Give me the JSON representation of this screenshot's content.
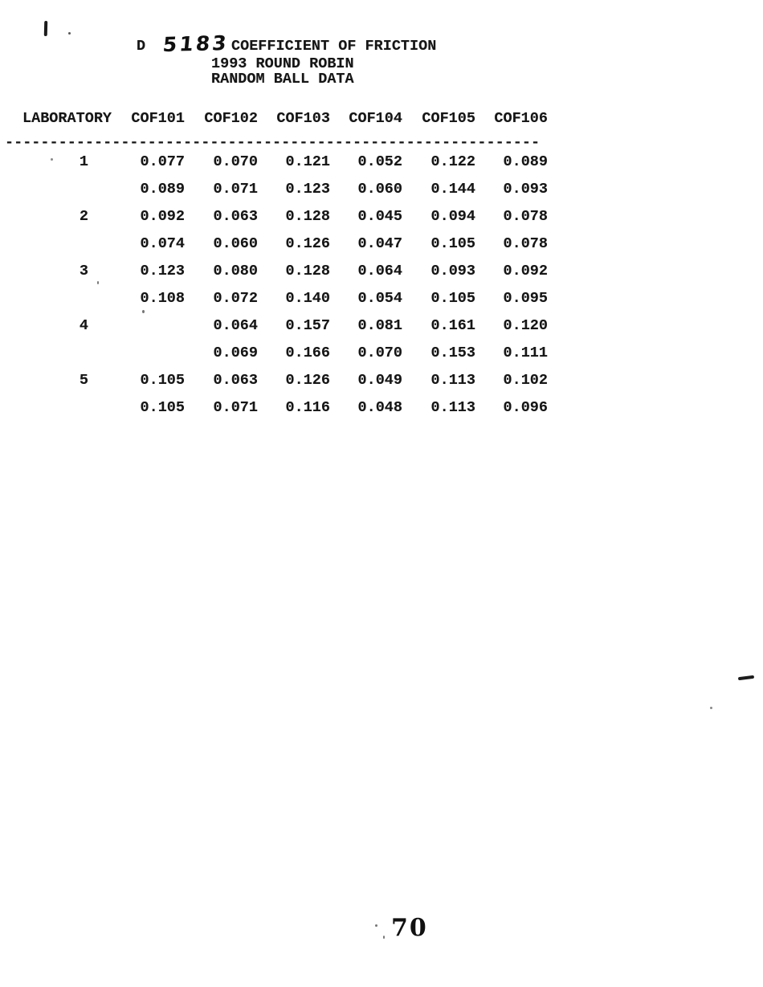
{
  "document": {
    "standard_prefix": "D",
    "standard_number_handwritten": "5183",
    "stray_mark": ".",
    "title_line1": "COEFFICIENT OF FRICTION",
    "title_line2": "1993 ROUND ROBIN",
    "title_line3": "RANDOM BALL DATA",
    "page_number": "70"
  },
  "table": {
    "columns": [
      "LABORATORY",
      "COF101",
      "COF102",
      "COF103",
      "COF104",
      "COF105",
      "COF106"
    ],
    "separator": "------------------------------------------------------------",
    "rows": [
      {
        "lab": "1",
        "values": [
          "0.077",
          "0.070",
          "0.121",
          "0.052",
          "0.122",
          "0.089"
        ]
      },
      {
        "lab": "",
        "values": [
          "0.089",
          "0.071",
          "0.123",
          "0.060",
          "0.144",
          "0.093"
        ]
      },
      {
        "lab": "2",
        "values": [
          "0.092",
          "0.063",
          "0.128",
          "0.045",
          "0.094",
          "0.078"
        ]
      },
      {
        "lab": "",
        "values": [
          "0.074",
          "0.060",
          "0.126",
          "0.047",
          "0.105",
          "0.078"
        ]
      },
      {
        "lab": "3",
        "values": [
          "0.123",
          "0.080",
          "0.128",
          "0.064",
          "0.093",
          "0.092"
        ]
      },
      {
        "lab": "",
        "values": [
          "0.108",
          "0.072",
          "0.140",
          "0.054",
          "0.105",
          "0.095"
        ]
      },
      {
        "lab": "4",
        "values": [
          "",
          "0.064",
          "0.157",
          "0.081",
          "0.161",
          "0.120"
        ]
      },
      {
        "lab": "",
        "values": [
          "",
          "0.069",
          "0.166",
          "0.070",
          "0.153",
          "0.111"
        ]
      },
      {
        "lab": "5",
        "values": [
          "0.105",
          "0.063",
          "0.126",
          "0.049",
          "0.113",
          "0.102"
        ]
      },
      {
        "lab": "",
        "values": [
          "0.105",
          "0.071",
          "0.116",
          "0.048",
          "0.113",
          "0.096"
        ]
      }
    ]
  }
}
